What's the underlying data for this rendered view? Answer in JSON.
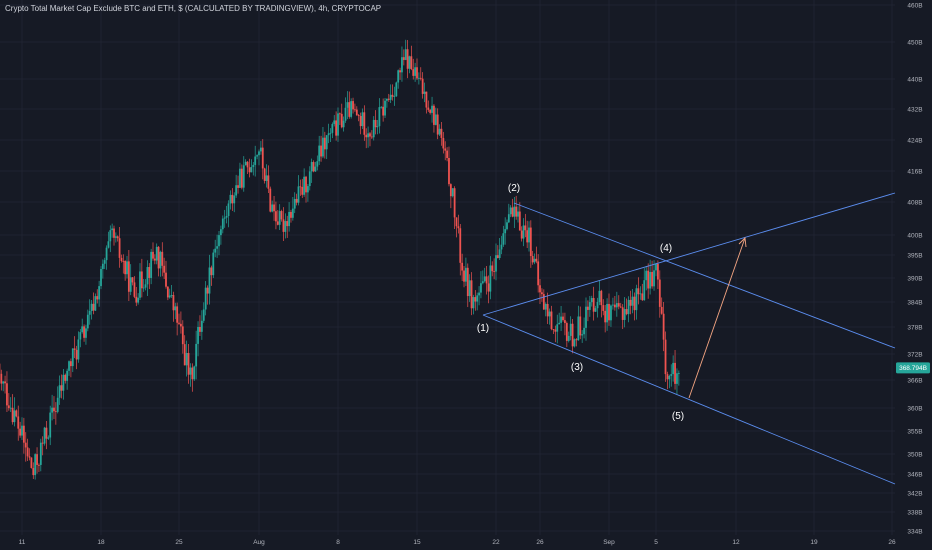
{
  "header": {
    "title": "Crypto Total Market Cap Exclude BTC and ETH, $ (CALCULATED BY TRADINGVIEW), 4h, CRYPTOCAP"
  },
  "colors": {
    "background": "#161a25",
    "bull": "#26a69a",
    "bear": "#ef5350",
    "trendline": "#5b8def",
    "arrow": "#f4a582",
    "price_tag": "#26a69a"
  },
  "chart_data": {
    "type": "candlestick",
    "title": "Crypto Total Market Cap Exclude BTC and ETH, $ (CALCULATED BY TRADINGVIEW), 4h, CRYPTOCAP",
    "y_axis": {
      "ticks": [
        "460B",
        "450B",
        "440B",
        "432B",
        "424B",
        "416B",
        "408B",
        "400B",
        "395B",
        "390B",
        "384B",
        "378B",
        "372B",
        "366B",
        "360B",
        "355B",
        "350B",
        "346B",
        "342B",
        "338B",
        "334B"
      ],
      "last_price_label": "368.794B"
    },
    "x_axis": {
      "ticks": [
        "11",
        "18",
        "25",
        "Aug",
        "8",
        "15",
        "22",
        "26",
        "Sep",
        "5",
        "12",
        "19",
        "26"
      ]
    },
    "price_path": [
      {
        "date": "Jul 8",
        "value": 372
      },
      {
        "date": "Jul 10",
        "value": 361
      },
      {
        "date": "Jul 12",
        "value": 346
      },
      {
        "date": "Jul 15",
        "value": 368
      },
      {
        "date": "Jul 17",
        "value": 380
      },
      {
        "date": "Jul 19",
        "value": 400
      },
      {
        "date": "Jul 21",
        "value": 386
      },
      {
        "date": "Jul 23",
        "value": 396
      },
      {
        "date": "Jul 25",
        "value": 378
      },
      {
        "date": "Jul 26",
        "value": 366
      },
      {
        "date": "Jul 28",
        "value": 396
      },
      {
        "date": "Jul 30",
        "value": 412
      },
      {
        "date": "Aug 1",
        "value": 422
      },
      {
        "date": "Aug 2",
        "value": 408
      },
      {
        "date": "Aug 3",
        "value": 402
      },
      {
        "date": "Aug 5",
        "value": 412
      },
      {
        "date": "Aug 7",
        "value": 424
      },
      {
        "date": "Aug 9",
        "value": 432
      },
      {
        "date": "Aug 11",
        "value": 426
      },
      {
        "date": "Aug 13",
        "value": 438
      },
      {
        "date": "Aug 14",
        "value": 446
      },
      {
        "date": "Aug 16",
        "value": 434
      },
      {
        "date": "Aug 17",
        "value": 426
      },
      {
        "date": "Aug 18",
        "value": 412
      },
      {
        "date": "Aug 19",
        "value": 392
      },
      {
        "date": "Aug 20",
        "value": 384
      },
      {
        "date": "Aug 22",
        "value": 392
      },
      {
        "date": "Aug 23",
        "value": 406
      },
      {
        "date": "Aug 25",
        "value": 400
      },
      {
        "date": "Aug 26",
        "value": 386
      },
      {
        "date": "Aug 27",
        "value": 379
      },
      {
        "date": "Aug 29",
        "value": 376
      },
      {
        "date": "Aug 31",
        "value": 386
      },
      {
        "date": "Sep 1",
        "value": 380
      },
      {
        "date": "Sep 3",
        "value": 384
      },
      {
        "date": "Sep 4",
        "value": 388
      },
      {
        "date": "Sep 5",
        "value": 392
      },
      {
        "date": "Sep 6",
        "value": 366
      },
      {
        "date": "Sep 7",
        "value": 368.794
      }
    ],
    "wave_labels": [
      {
        "label": "(1)",
        "date": "Aug 20",
        "value": 384
      },
      {
        "label": "(2)",
        "date": "Aug 23",
        "value": 408
      },
      {
        "label": "(3)",
        "date": "Aug 29",
        "value": 375
      },
      {
        "label": "(4)",
        "date": "Sep 5",
        "value": 395
      },
      {
        "label": "(5)",
        "date": "Sep 6",
        "value": 362
      }
    ]
  }
}
